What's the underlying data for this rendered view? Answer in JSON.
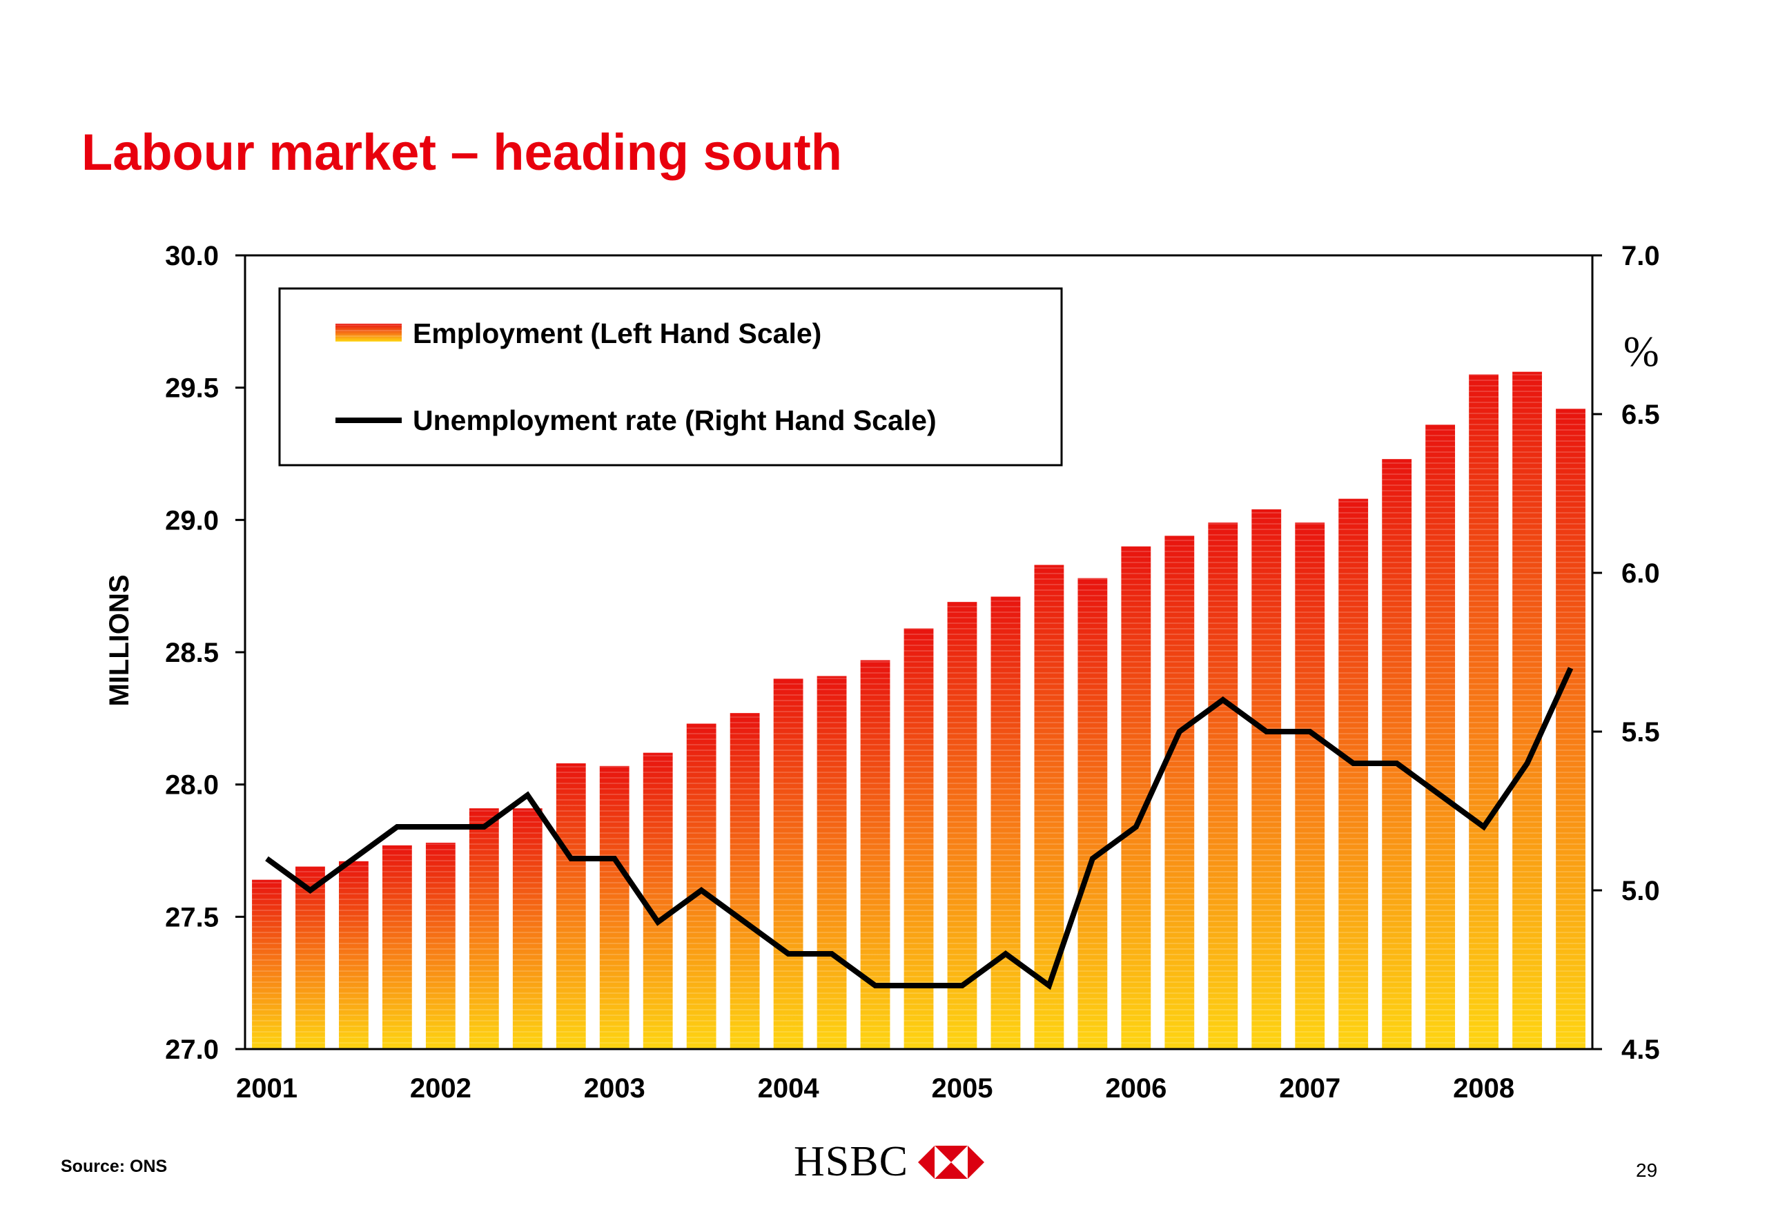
{
  "slide": {
    "title": "Labour market – heading south",
    "source": "Source: ONS",
    "logo_text": "HSBC",
    "page_number": "29"
  },
  "colors": {
    "title": "#e8000d",
    "bar_top": "#e8140f",
    "bar_mid": "#f77a16",
    "bar_bottom": "#fed512",
    "line": "#000000",
    "logo_red": "#db0011"
  },
  "chart_data": {
    "type": "bar+line",
    "left_axis": {
      "label": "MILLIONS",
      "range": [
        27.0,
        30.0
      ],
      "ticks": [
        "27.0",
        "27.5",
        "28.0",
        "28.5",
        "29.0",
        "29.5",
        "30.0"
      ]
    },
    "right_axis": {
      "label": "%",
      "range": [
        4.5,
        7.0
      ],
      "ticks": [
        "4.5",
        "5.0",
        "5.5",
        "6.0",
        "6.5",
        "7.0"
      ]
    },
    "x_axis": {
      "year_labels": [
        "2001",
        "2002",
        "2003",
        "2004",
        "2005",
        "2006",
        "2007",
        "2008"
      ],
      "year_label_start_index": 0,
      "year_label_every": 4
    },
    "legend": {
      "position": "top-left",
      "entries": [
        "Employment (Left Hand Scale)",
        "Unemployment rate (Right Hand Scale)"
      ]
    },
    "series": [
      {
        "name": "Employment (Left Hand Scale)",
        "type": "bar",
        "axis": "left",
        "values": [
          27.64,
          27.69,
          27.71,
          27.77,
          27.78,
          27.91,
          27.91,
          28.08,
          28.07,
          28.12,
          28.23,
          28.27,
          28.4,
          28.41,
          28.47,
          28.59,
          28.69,
          28.71,
          28.83,
          28.78,
          28.9,
          28.94,
          28.99,
          29.04,
          28.99,
          29.08,
          29.23,
          29.36,
          29.55,
          29.56,
          29.42
        ]
      },
      {
        "name": "Unemployment rate (Right Hand Scale)",
        "type": "line",
        "axis": "right",
        "values": [
          5.1,
          5.0,
          5.1,
          5.2,
          5.2,
          5.2,
          5.3,
          5.1,
          5.1,
          4.9,
          5.0,
          4.9,
          4.8,
          4.8,
          4.7,
          4.7,
          4.7,
          4.8,
          4.7,
          5.1,
          5.2,
          5.5,
          5.6,
          5.5,
          5.5,
          5.4,
          5.4,
          5.3,
          5.2,
          5.4,
          5.7
        ]
      }
    ]
  }
}
